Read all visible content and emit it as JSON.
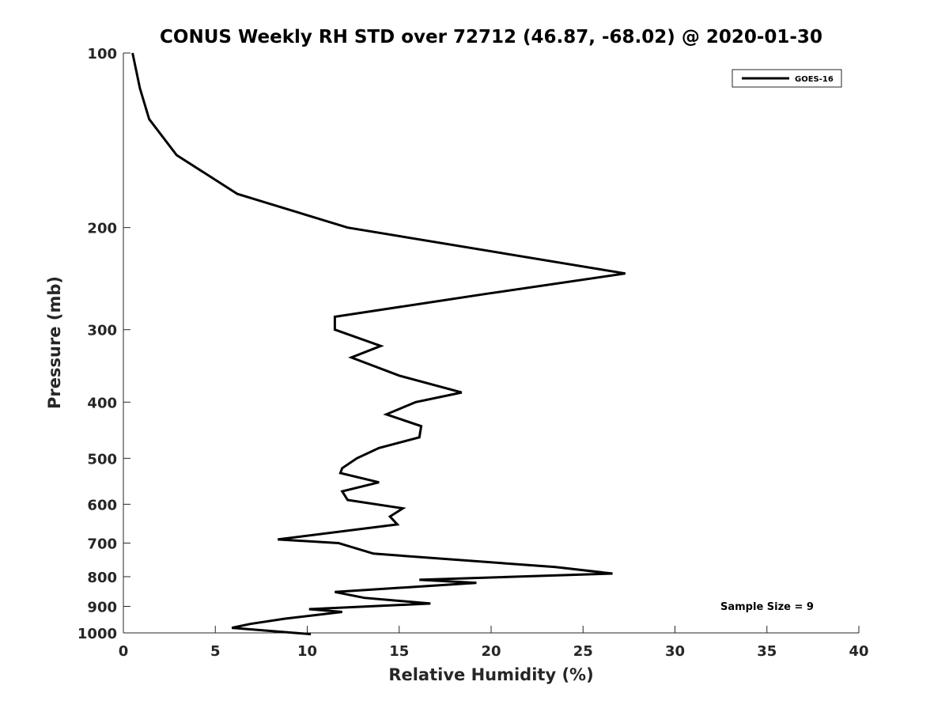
{
  "chart_data": {
    "type": "line",
    "title": "CONUS Weekly RH STD over 72712 (46.87, -68.02) @ 2020-01-30",
    "xlabel": "Relative Humidity (%)",
    "ylabel": "Pressure (mb)",
    "xlim": [
      0,
      40
    ],
    "ylim": [
      100,
      1000
    ],
    "yscale": "log",
    "y_reversed": true,
    "grid": false,
    "legend_position": "top-right",
    "x_ticks": [
      "0",
      "5",
      "10",
      "15",
      "20",
      "25",
      "30",
      "35",
      "40"
    ],
    "y_ticks": [
      "100",
      "200",
      "300",
      "400",
      "500",
      "600",
      "700",
      "800",
      "900",
      "1000"
    ],
    "series": [
      {
        "name": "GOES-16",
        "color": "#000000",
        "x": [
          0.5,
          0.9,
          1.4,
          2.9,
          6.2,
          12.2,
          27.3,
          19.8,
          11.5,
          11.5,
          14.0,
          12.4,
          15.0,
          18.4,
          15.9,
          14.3,
          16.2,
          16.1,
          13.9,
          12.7,
          11.9,
          11.8,
          13.9,
          11.9,
          12.2,
          15.2,
          14.5,
          14.9,
          8.4,
          11.7,
          13.6,
          23.5,
          26.6,
          16.1,
          19.2,
          11.5,
          13.1,
          16.7,
          10.1,
          11.9,
          8.8,
          6.9,
          5.9,
          10.2
        ],
        "y": [
          100,
          115,
          130,
          150,
          175,
          200,
          240,
          260,
          285,
          300,
          320,
          335,
          360,
          385,
          400,
          420,
          440,
          460,
          480,
          500,
          520,
          530,
          550,
          570,
          590,
          610,
          630,
          650,
          690,
          700,
          730,
          770,
          790,
          810,
          820,
          850,
          870,
          890,
          910,
          920,
          945,
          965,
          980,
          1005
        ]
      }
    ],
    "annotation": "Sample Size = 9"
  }
}
